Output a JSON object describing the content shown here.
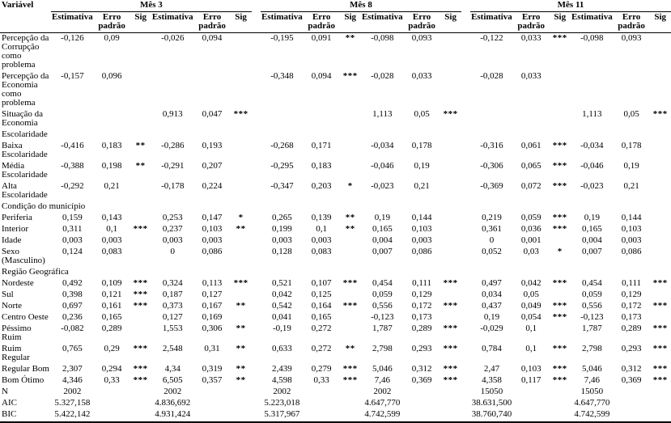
{
  "table": {
    "variable_header": "Variável",
    "month_groups": [
      {
        "label": "Mês 3"
      },
      {
        "label": "Mês 8"
      },
      {
        "label": "Mês 11"
      }
    ],
    "sub_headers": [
      "Estimativa",
      "Erro padrão",
      "Sig",
      "Estimativa",
      "Erro padrão",
      "Sig"
    ],
    "rows": [
      {
        "type": "data",
        "label": "Percepção da\nCorrupção\ncomo problema",
        "cells": [
          "-0,126",
          "0,09",
          "",
          "-0,026",
          "0,094",
          "",
          "-0,195",
          "0,091",
          "**",
          "-0,098",
          "0,093",
          "",
          "-0,122",
          "0,033",
          "***",
          "-0,098",
          "0,093",
          ""
        ]
      },
      {
        "type": "data",
        "label": "Percepção da\nEconomia\ncomo problema",
        "cells": [
          "-0,157",
          "0,096",
          "",
          "",
          "",
          "",
          "-0,348",
          "0,094",
          "***",
          "-0,028",
          "0,033",
          "",
          "-0,028",
          "0,033",
          "",
          "",
          "",
          ""
        ]
      },
      {
        "type": "data",
        "label": "Situação da\nEconomia",
        "cells": [
          "",
          "",
          "",
          "0,913",
          "0,047",
          "***",
          "",
          "",
          "",
          "1,113",
          "0,05",
          "***",
          "",
          "",
          "",
          "1,113",
          "0,05",
          "***"
        ]
      },
      {
        "type": "section",
        "label": "Escolaridade"
      },
      {
        "type": "data",
        "label": "Baixa\nEscolaridade",
        "cells": [
          "-0,416",
          "0,183",
          "**",
          "-0,286",
          "0,193",
          "",
          "-0,268",
          "0,171",
          "",
          "-0,034",
          "0,178",
          "",
          "-0,316",
          "0,061",
          "***",
          "-0,034",
          "0,178",
          ""
        ]
      },
      {
        "type": "data",
        "label": "Média\nEscolaridade",
        "cells": [
          "-0,388",
          "0,198",
          "**",
          "-0,291",
          "0,207",
          "",
          "-0,295",
          "0,183",
          "",
          "-0,046",
          "0,19",
          "",
          "-0,306",
          "0,065",
          "***",
          "-0,046",
          "0,19",
          ""
        ]
      },
      {
        "type": "data",
        "label": "Alta\nEscolaridade",
        "cells": [
          "-0,292",
          "0,21",
          "",
          "-0,178",
          "0,224",
          "",
          "-0,347",
          "0,203",
          "*",
          "-0,023",
          "0,21",
          "",
          "-0,369",
          "0,072",
          "***",
          "-0,023",
          "0,21",
          ""
        ]
      },
      {
        "type": "section",
        "label": "Condição do município"
      },
      {
        "type": "data",
        "label": "Periferia",
        "cells": [
          "0,159",
          "0,143",
          "",
          "0,253",
          "0,147",
          "*",
          "0,265",
          "0,139",
          "**",
          "0,19",
          "0,144",
          "",
          "0,219",
          "0,059",
          "***",
          "0,19",
          "0,144",
          ""
        ]
      },
      {
        "type": "data",
        "label": "Interior",
        "cells": [
          "0,311",
          "0,1",
          "***",
          "0,237",
          "0,103",
          "**",
          "0,199",
          "0,1",
          "**",
          "0,165",
          "0,103",
          "",
          "0,361",
          "0,036",
          "***",
          "0,165",
          "0,103",
          ""
        ]
      },
      {
        "type": "data",
        "label": "Idade",
        "cells": [
          "0,003",
          "0,003",
          "",
          "0,003",
          "0,003",
          "",
          "0,003",
          "0,003",
          "",
          "0,004",
          "0,003",
          "",
          "0",
          "0,001",
          "",
          "0,004",
          "0,003",
          ""
        ]
      },
      {
        "type": "data",
        "label": "Sexo\n(Masculino)",
        "cells": [
          "0,124",
          "0,083",
          "",
          "0",
          "0,086",
          "",
          "0,128",
          "0,083",
          "",
          "0,007",
          "0,086",
          "",
          "0,052",
          "0,03",
          "*",
          "0,007",
          "0,086",
          ""
        ]
      },
      {
        "type": "section",
        "label": "Região Geográfica"
      },
      {
        "type": "data",
        "label": "Nordeste",
        "cells": [
          "0,492",
          "0,109",
          "***",
          "0,324",
          "0,113",
          "***",
          "0,521",
          "0,107",
          "***",
          "0,454",
          "0,111",
          "***",
          "0,497",
          "0,042",
          "***",
          "0,454",
          "0,111",
          "***"
        ]
      },
      {
        "type": "data",
        "label": "Sul",
        "cells": [
          "0,398",
          "0,121",
          "***",
          "0,187",
          "0,127",
          "",
          "0,042",
          "0,125",
          "",
          "0,059",
          "0,129",
          "",
          "0,034",
          "0,05",
          "",
          "0,059",
          "0,129",
          ""
        ]
      },
      {
        "type": "data",
        "label": "Norte",
        "cells": [
          "0,697",
          "0,161",
          "***",
          "0,373",
          "0,167",
          "**",
          "0,542",
          "0,164",
          "***",
          "0,556",
          "0,172",
          "***",
          "0,437",
          "0,049",
          "***",
          "0,556",
          "0,172",
          "***"
        ]
      },
      {
        "type": "data",
        "label": "Centro Oeste",
        "cells": [
          "0,236",
          "0,165",
          "",
          "0,127",
          "0,169",
          "",
          "0,041",
          "0,165",
          "",
          "-0,123",
          "0,173",
          "",
          "0,19",
          "0,054",
          "***",
          "-0,123",
          "0,173",
          ""
        ]
      },
      {
        "type": "data",
        "label": "Péssimo Ruim",
        "cells": [
          "-0,082",
          "0,289",
          "",
          "1,553",
          "0,306",
          "**",
          "-0,19",
          "0,272",
          "",
          "1,787",
          "0,289",
          "***",
          "-0,029",
          "0,1",
          "",
          "1,787",
          "0,289",
          "***"
        ]
      },
      {
        "type": "data",
        "label": "Ruim Regular",
        "cells": [
          "0,765",
          "0,29",
          "***",
          "2,548",
          "0,31",
          "**",
          "0,633",
          "0,272",
          "**",
          "2,798",
          "0,293",
          "***",
          "0,784",
          "0,1",
          "***",
          "2,798",
          "0,293",
          "***"
        ]
      },
      {
        "type": "data",
        "label": "Regular Bom",
        "cells": [
          "2,307",
          "0,294",
          "***",
          "4,34",
          "0,319",
          "**",
          "2,439",
          "0,279",
          "***",
          "5,046",
          "0,312",
          "***",
          "2,47",
          "0,103",
          "***",
          "5,046",
          "0,312",
          "***"
        ]
      },
      {
        "type": "data",
        "label": "Bom Ótimo",
        "cells": [
          "4,346",
          "0,33",
          "***",
          "6,505",
          "0,357",
          "**",
          "4,598",
          "0,33",
          "***",
          "7,46",
          "0,369",
          "***",
          "4,358",
          "0,117",
          "***",
          "7,46",
          "0,369",
          "***"
        ]
      },
      {
        "type": "data",
        "label": "N",
        "cells": [
          "2002",
          "",
          "",
          "2002",
          "",
          "",
          "2002",
          "",
          "",
          "2002",
          "",
          "",
          "15050",
          "",
          "",
          "15050",
          "",
          ""
        ]
      },
      {
        "type": "data",
        "label": "AIC",
        "cells": [
          "5.327,158",
          "",
          "",
          "4.836,692",
          "",
          "",
          "5.223,018",
          "",
          "",
          "4.647,770",
          "",
          "",
          "38.631,500",
          "",
          "",
          "4.647,770",
          "",
          ""
        ]
      },
      {
        "type": "data",
        "label": "BIC",
        "cells": [
          "5.422,142",
          "",
          "",
          "4.931,424",
          "",
          "",
          "5.317,967",
          "",
          "",
          "4.742,599",
          "",
          "",
          "38.760,740",
          "",
          "",
          "4.742,599",
          "",
          ""
        ]
      }
    ]
  }
}
